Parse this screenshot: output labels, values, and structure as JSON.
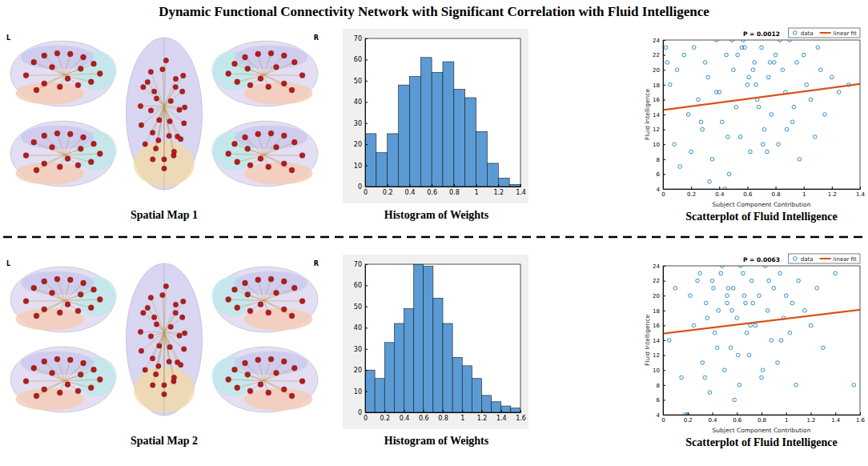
{
  "title": "Dynamic Functional Connectivity Network with Significant Correlation with Fluid Intelligence",
  "rows": [
    {
      "spatial_map": {
        "caption": "Spatial Map 1",
        "left_label": "L",
        "right_label": "R"
      },
      "histogram_caption": "Histogram of Weights",
      "scatter_caption": "Scatterplot of Fluid Intelligence"
    },
    {
      "spatial_map": {
        "caption": "Spatial Map 2",
        "left_label": "L",
        "right_label": "R"
      },
      "histogram_caption": "Histogram of Weights",
      "scatter_caption": "Scatterplot of Fluid Intelligence"
    }
  ],
  "chart_data": [
    {
      "type": "histogram",
      "color": "#5b9bd5",
      "bins": [
        0,
        0.1,
        0.2,
        0.3,
        0.4,
        0.5,
        0.6,
        0.7,
        0.8,
        0.9,
        1.0,
        1.1,
        1.2,
        1.3,
        1.4
      ],
      "values": [
        25,
        16,
        25,
        48,
        52,
        61,
        54,
        59,
        46,
        42,
        26,
        11,
        4,
        1
      ],
      "xlim": [
        0,
        1.4
      ],
      "xticks": [
        0,
        0.2,
        0.4,
        0.6,
        0.8,
        1,
        1.2,
        1.4
      ],
      "ylim": [
        0,
        70
      ],
      "yticks": [
        0,
        10,
        20,
        30,
        40,
        50,
        60,
        70
      ]
    },
    {
      "type": "scatter",
      "title": "P = 0.0012",
      "xlabel": "Subject Component Contribution",
      "ylabel": "Fluid Intelligence",
      "xlim": [
        0,
        1.4
      ],
      "xticks": [
        0,
        0.2,
        0.4,
        0.6,
        0.8,
        1,
        1.2,
        1.4
      ],
      "ylim": [
        4,
        24
      ],
      "yticks": [
        4,
        6,
        8,
        10,
        12,
        14,
        16,
        18,
        20,
        22,
        24
      ],
      "legend": "top-right",
      "series": [
        {
          "name": "data",
          "type": "scatter",
          "marker": "circle",
          "color": "#0072bd",
          "x": [
            0.02,
            0.05,
            0.08,
            0.03,
            0.1,
            0.12,
            0.15,
            0.18,
            0.2,
            0.22,
            0.25,
            0.28,
            0.3,
            0.32,
            0.35,
            0.38,
            0.4,
            0.42,
            0.45,
            0.47,
            0.5,
            0.52,
            0.55,
            0.57,
            0.6,
            0.62,
            0.65,
            0.67,
            0.7,
            0.72,
            0.75,
            0.77,
            0.8,
            0.82,
            0.85,
            0.87,
            0.9,
            0.92,
            0.95,
            0.97,
            1.0,
            1.02,
            1.05,
            1.08,
            1.1,
            1.12,
            1.15,
            1.2,
            1.25,
            1.32,
            0.33,
            0.44,
            0.58,
            0.68,
            0.79,
            0.88,
            0.49,
            0.61,
            0.71,
            0.38,
            0.27,
            0.53,
            0.64,
            0.74,
            0.83,
            0.93,
            0.46,
            0.56,
            0.66,
            0.76
          ],
          "values": [
            23,
            18,
            10,
            21,
            20,
            7,
            22,
            14,
            9,
            23,
            16,
            12,
            21,
            19,
            8,
            24,
            17,
            13,
            22,
            6,
            20,
            15,
            11,
            24,
            18,
            9,
            21,
            16,
            23,
            12,
            19,
            14,
            22,
            10,
            20,
            17,
            24,
            13,
            21,
            8,
            22,
            18,
            16,
            11,
            23,
            20,
            14,
            19,
            17,
            18,
            5,
            4,
            23,
            15,
            21,
            12,
            24,
            19,
            10,
            17,
            13,
            22,
            20,
            9,
            24,
            15,
            11,
            23,
            18,
            21
          ]
        },
        {
          "name": "linear fit",
          "type": "line",
          "line_style": "solid",
          "color": "#d95319",
          "x": [
            0,
            1.4
          ],
          "values": [
            14.6,
            18.1
          ]
        }
      ]
    },
    {
      "type": "histogram",
      "color": "#5b9bd5",
      "bins": [
        0,
        0.1,
        0.2,
        0.3,
        0.4,
        0.5,
        0.6,
        0.7,
        0.8,
        0.9,
        1.0,
        1.1,
        1.2,
        1.3,
        1.4,
        1.5,
        1.6
      ],
      "values": [
        20,
        16,
        33,
        42,
        49,
        70,
        69,
        54,
        42,
        26,
        22,
        16,
        8,
        5,
        3,
        2
      ],
      "xlim": [
        0,
        1.6
      ],
      "xticks": [
        0,
        0.2,
        0.4,
        0.6,
        0.8,
        1,
        1.2,
        1.4,
        1.6
      ],
      "ylim": [
        0,
        70
      ],
      "yticks": [
        0,
        10,
        20,
        30,
        40,
        50,
        60,
        70
      ]
    },
    {
      "type": "scatter",
      "title": "P = 0.0063",
      "xlabel": "Subject Component Contribution",
      "ylabel": "Fluid Intelligence",
      "xlim": [
        0,
        1.6
      ],
      "xticks": [
        0,
        0.2,
        0.4,
        0.6,
        0.8,
        1,
        1.2,
        1.4,
        1.6
      ],
      "ylim": [
        4,
        24
      ],
      "yticks": [
        4,
        6,
        8,
        10,
        12,
        14,
        16,
        18,
        20,
        22,
        24
      ],
      "legend": "top-right",
      "series": [
        {
          "name": "data",
          "type": "scatter",
          "marker": "circle",
          "color": "#0072bd",
          "x": [
            0.05,
            0.1,
            0.15,
            0.2,
            0.22,
            0.25,
            0.3,
            0.32,
            0.35,
            0.38,
            0.4,
            0.42,
            0.45,
            0.48,
            0.5,
            0.52,
            0.55,
            0.57,
            0.6,
            0.62,
            0.65,
            0.67,
            0.7,
            0.72,
            0.75,
            0.78,
            0.8,
            0.83,
            0.85,
            0.88,
            0.9,
            0.93,
            0.95,
            0.98,
            1.0,
            1.03,
            1.05,
            1.08,
            1.1,
            1.15,
            1.2,
            1.25,
            1.3,
            1.4,
            1.55,
            0.18,
            0.28,
            0.36,
            0.44,
            0.53,
            0.58,
            0.63,
            0.68,
            0.73,
            0.81,
            0.47,
            0.56,
            0.61,
            0.66,
            0.71,
            0.86,
            0.96,
            0.34,
            0.41,
            0.52
          ],
          "values": [
            14,
            21,
            9,
            4,
            20,
            16,
            23,
            11,
            19,
            7,
            22,
            15,
            18,
            24,
            10,
            20,
            13,
            21,
            17,
            8,
            23,
            19,
            12,
            22,
            16,
            20,
            9,
            24,
            18,
            14,
            21,
            11,
            23,
            17,
            20,
            15,
            19,
            8,
            22,
            18,
            16,
            21,
            13,
            23,
            8,
            4,
            22,
            17,
            13,
            21,
            6,
            24,
            15,
            19,
            10,
            23,
            18,
            12,
            20,
            16,
            22,
            14,
            9,
            21,
            19
          ]
        },
        {
          "name": "linear fit",
          "type": "line",
          "line_style": "solid",
          "color": "#d95319",
          "x": [
            0,
            1.6
          ],
          "values": [
            14.9,
            18.1
          ]
        }
      ]
    }
  ]
}
